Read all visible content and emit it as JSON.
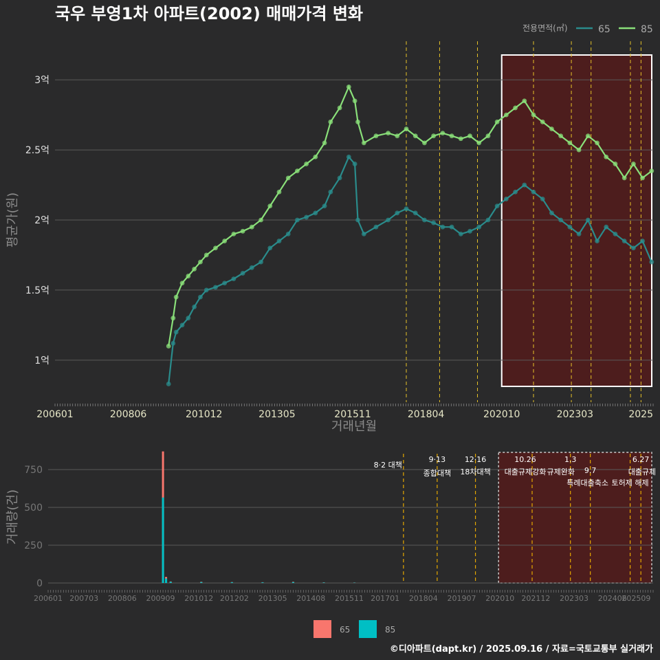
{
  "title": "국우 부영1차 아파트(2002) 매매가격 변화",
  "caption": "©디아파트(dapt.kr) / 2025.09.16 / 자료=국토교통부 실거래가",
  "colors": {
    "background": "#2a2a2b",
    "s65_line": "#2a8c8c",
    "s85_line": "#8ae07a",
    "bar65": "#f8766d",
    "bar85": "#00bfc4",
    "policy_line": "#e6c229",
    "highlight": "#5a1a1a"
  },
  "top_legend": {
    "title": "전용면적(㎡)",
    "items": [
      "65",
      "85"
    ]
  },
  "bottom_legend": {
    "items": [
      "65",
      "85"
    ]
  },
  "chart_data": [
    {
      "type": "line",
      "title": "국우 부영1차 아파트(2002) 매매가격 변화",
      "xlabel": "거래년월",
      "ylabel": "평균가(원)",
      "x_range": [
        2006.0,
        2025.75
      ],
      "ylim": [
        0.7,
        3.3
      ],
      "y_unit": "억",
      "x_ticks": [
        "200601",
        "200806",
        "201012",
        "201305",
        "201511",
        "201804",
        "202010",
        "202303",
        "2025"
      ],
      "y_ticks": [
        "1억",
        "1.5억",
        "2억",
        "2.5억",
        "3억"
      ],
      "y_tick_values": [
        1.0,
        1.5,
        2.0,
        2.5,
        3.0
      ],
      "grid": true,
      "legend_position": "top-right",
      "policy_lines": [
        2017.6,
        2018.7,
        2019.95,
        2021.8,
        2023.05,
        2023.7,
        2025.0,
        2025.35
      ],
      "highlight_range": [
        2020.75,
        2025.75
      ],
      "series": [
        {
          "name": "65",
          "x": [
            2009.75,
            2009.9,
            2010.0,
            2010.2,
            2010.4,
            2010.6,
            2010.8,
            2011.0,
            2011.3,
            2011.6,
            2011.9,
            2012.2,
            2012.5,
            2012.8,
            2013.1,
            2013.4,
            2013.7,
            2014.0,
            2014.3,
            2014.6,
            2014.9,
            2015.1,
            2015.4,
            2015.7,
            2015.9,
            2016.0,
            2016.2,
            2016.6,
            2017.0,
            2017.3,
            2017.6,
            2017.9,
            2018.2,
            2018.5,
            2018.8,
            2019.1,
            2019.4,
            2019.7,
            2020.0,
            2020.3,
            2020.6,
            2020.9,
            2021.2,
            2021.5,
            2021.8,
            2022.1,
            2022.4,
            2022.7,
            2023.0,
            2023.3,
            2023.6,
            2023.9,
            2024.2,
            2024.5,
            2024.8,
            2025.1,
            2025.4,
            2025.7
          ],
          "values": [
            0.83,
            1.12,
            1.2,
            1.25,
            1.3,
            1.38,
            1.45,
            1.5,
            1.52,
            1.55,
            1.58,
            1.62,
            1.66,
            1.7,
            1.8,
            1.85,
            1.9,
            2.0,
            2.02,
            2.05,
            2.1,
            2.2,
            2.3,
            2.45,
            2.4,
            2.0,
            1.9,
            1.95,
            2.0,
            2.05,
            2.08,
            2.05,
            2.0,
            1.98,
            1.95,
            1.95,
            1.9,
            1.92,
            1.95,
            2.0,
            2.1,
            2.15,
            2.2,
            2.25,
            2.2,
            2.15,
            2.05,
            2.0,
            1.95,
            1.9,
            2.0,
            1.85,
            1.95,
            1.9,
            1.85,
            1.8,
            1.85,
            1.7
          ]
        },
        {
          "name": "85",
          "x": [
            2009.75,
            2009.9,
            2010.0,
            2010.2,
            2010.4,
            2010.6,
            2010.8,
            2011.0,
            2011.3,
            2011.6,
            2011.9,
            2012.2,
            2012.5,
            2012.8,
            2013.1,
            2013.4,
            2013.7,
            2014.0,
            2014.3,
            2014.6,
            2014.9,
            2015.1,
            2015.4,
            2015.7,
            2015.9,
            2016.0,
            2016.2,
            2016.6,
            2017.0,
            2017.3,
            2017.6,
            2017.9,
            2018.2,
            2018.5,
            2018.8,
            2019.1,
            2019.4,
            2019.7,
            2020.0,
            2020.3,
            2020.6,
            2020.9,
            2021.2,
            2021.5,
            2021.8,
            2022.1,
            2022.4,
            2022.7,
            2023.0,
            2023.3,
            2023.6,
            2023.9,
            2024.2,
            2024.5,
            2024.8,
            2025.1,
            2025.4,
            2025.7
          ],
          "values": [
            1.1,
            1.3,
            1.45,
            1.55,
            1.6,
            1.65,
            1.7,
            1.75,
            1.8,
            1.85,
            1.9,
            1.92,
            1.95,
            2.0,
            2.1,
            2.2,
            2.3,
            2.35,
            2.4,
            2.45,
            2.55,
            2.7,
            2.8,
            2.95,
            2.85,
            2.7,
            2.55,
            2.6,
            2.62,
            2.6,
            2.65,
            2.6,
            2.55,
            2.6,
            2.62,
            2.6,
            2.58,
            2.6,
            2.55,
            2.6,
            2.7,
            2.75,
            2.8,
            2.85,
            2.75,
            2.7,
            2.65,
            2.6,
            2.55,
            2.5,
            2.6,
            2.55,
            2.45,
            2.4,
            2.3,
            2.4,
            2.3,
            2.35
          ]
        }
      ]
    },
    {
      "type": "bar",
      "ylabel": "거래량(건)",
      "x_range": [
        2006.0,
        2025.75
      ],
      "ylim": [
        0,
        900
      ],
      "x_ticks": [
        "200601",
        "200703",
        "200806",
        "200909",
        "201012",
        "201202",
        "201305",
        "201408",
        "201511",
        "201701",
        "201804",
        "201907",
        "202010",
        "202112",
        "202303",
        "202406",
        "202509"
      ],
      "y_ticks": [
        "0",
        "250",
        "500",
        "750"
      ],
      "y_tick_values": [
        0,
        250,
        500,
        750
      ],
      "grid": true,
      "legend_position": "bottom",
      "annotations": [
        {
          "label": "8·2 대책",
          "x": 2017.6
        },
        {
          "label": "9·13",
          "x": 2018.7
        },
        {
          "label": "종합대책",
          "x": 2018.7
        },
        {
          "label": "12·16",
          "x": 2019.95
        },
        {
          "label": "18차대책",
          "x": 2019.95
        },
        {
          "label": "10.26",
          "x": 2021.8
        },
        {
          "label": "대출규제강화",
          "x": 2021.8
        },
        {
          "label": "1.3",
          "x": 2023.05
        },
        {
          "label": "규제완화",
          "x": 2023.05
        },
        {
          "label": "9.7",
          "x": 2023.7
        },
        {
          "label": "특례대출축소",
          "x": 2023.7
        },
        {
          "label": "토허제 해제",
          "x": 2025.0
        },
        {
          "label": "6.27",
          "x": 2025.35
        },
        {
          "label": "대출규제",
          "x": 2025.35
        }
      ],
      "series": [
        {
          "name": "65",
          "x": [
            2009.75,
            2009.85,
            2010.0,
            2011.0,
            2012.0,
            2013.0,
            2014.0,
            2015.0,
            2016.0
          ],
          "values": [
            870,
            40,
            10,
            8,
            6,
            5,
            8,
            4,
            3
          ]
        },
        {
          "name": "85",
          "x": [
            2009.75,
            2009.85,
            2010.0,
            2011.0,
            2012.0,
            2013.0,
            2014.0,
            2015.0,
            2016.0
          ],
          "values": [
            565,
            30,
            8,
            6,
            5,
            4,
            6,
            3,
            2
          ]
        }
      ]
    }
  ]
}
